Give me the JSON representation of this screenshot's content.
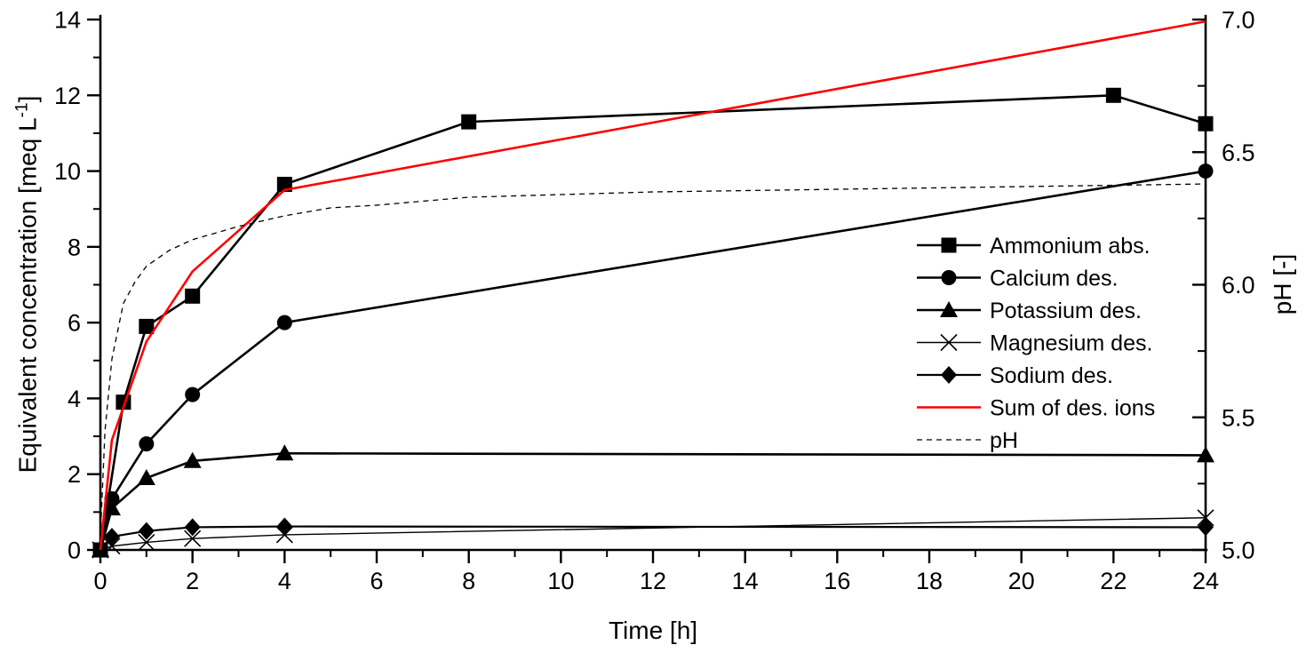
{
  "figure": {
    "background": "#ffffff",
    "axis_color": "#000000",
    "x_title": "Time [h]",
    "y_left_title": {
      "pre": "Equivalent concentration [meq L",
      "sup": "-1",
      "post": "]"
    },
    "y_right_title": "pH [-]"
  },
  "chart_data": {
    "type": "line",
    "title": "",
    "xlabel": "Time [h]",
    "ylabel_left": "Equivalent concentration [meq L-1]",
    "ylabel_right": "pH [-]",
    "x_axis": {
      "min": 0,
      "max": 24,
      "major_ticks": [
        0,
        2,
        4,
        6,
        8,
        10,
        12,
        14,
        16,
        18,
        20,
        22,
        24
      ],
      "minor_step": 1
    },
    "y_axis_left": {
      "min": 0,
      "max": 14,
      "major_ticks": [
        0,
        2,
        4,
        6,
        8,
        10,
        12,
        14
      ],
      "minor_step": 1
    },
    "y_axis_right": {
      "min": 5.0,
      "max": 7.0,
      "major_ticks": [
        5.0,
        5.5,
        6.0,
        6.5,
        7.0
      ],
      "minor_step": 0.25
    },
    "grid": false,
    "legend_position": "right-center",
    "series": [
      {
        "name": "Ammonium abs.",
        "axis": "left",
        "color": "#000000",
        "marker": "square",
        "line_width": 2.6,
        "x": [
          0,
          0.5,
          1,
          2,
          4,
          8,
          22,
          24
        ],
        "y": [
          0,
          3.9,
          5.9,
          6.7,
          9.65,
          11.3,
          12.0,
          11.25
        ]
      },
      {
        "name": "Calcium des.",
        "axis": "left",
        "color": "#000000",
        "marker": "circle",
        "line_width": 2.6,
        "x": [
          0,
          0.25,
          1,
          2,
          4,
          24
        ],
        "y": [
          0,
          1.35,
          2.8,
          4.1,
          6.0,
          10.0
        ]
      },
      {
        "name": "Potassium des.",
        "axis": "left",
        "color": "#000000",
        "marker": "triangle",
        "line_width": 2.6,
        "x": [
          0,
          0.25,
          1,
          2,
          4,
          24
        ],
        "y": [
          0,
          1.1,
          1.9,
          2.35,
          2.55,
          2.5
        ]
      },
      {
        "name": "Magnesium des.",
        "axis": "left",
        "color": "#000000",
        "marker": "x",
        "line_width": 1.4,
        "x": [
          0,
          0.25,
          1,
          2,
          4,
          24
        ],
        "y": [
          0,
          0.1,
          0.2,
          0.3,
          0.4,
          0.85
        ]
      },
      {
        "name": "Sodium des.",
        "axis": "left",
        "color": "#000000",
        "marker": "diamond",
        "line_width": 2.2,
        "x": [
          0,
          0.25,
          1,
          2,
          4,
          24
        ],
        "y": [
          0,
          0.35,
          0.5,
          0.6,
          0.62,
          0.6
        ]
      },
      {
        "name": "Sum of des. ions",
        "axis": "left",
        "color": "#ff0000",
        "marker": "none",
        "line_width": 2.6,
        "x": [
          0,
          0.25,
          1,
          2,
          4,
          24
        ],
        "y": [
          0,
          2.9,
          5.5,
          7.35,
          9.5,
          13.95
        ]
      },
      {
        "name": "pH",
        "axis": "right",
        "color": "#000000",
        "marker": "none",
        "line_width": 1.3,
        "dash": "6 5",
        "x": [
          0,
          0.1,
          0.25,
          0.5,
          0.75,
          1,
          1.5,
          2,
          3,
          4,
          5,
          6,
          8,
          10,
          12,
          16,
          20,
          24
        ],
        "y": [
          5.05,
          5.45,
          5.72,
          5.93,
          6.01,
          6.07,
          6.13,
          6.17,
          6.22,
          6.26,
          6.29,
          6.3,
          6.33,
          6.34,
          6.35,
          6.36,
          6.37,
          6.38
        ]
      }
    ]
  }
}
